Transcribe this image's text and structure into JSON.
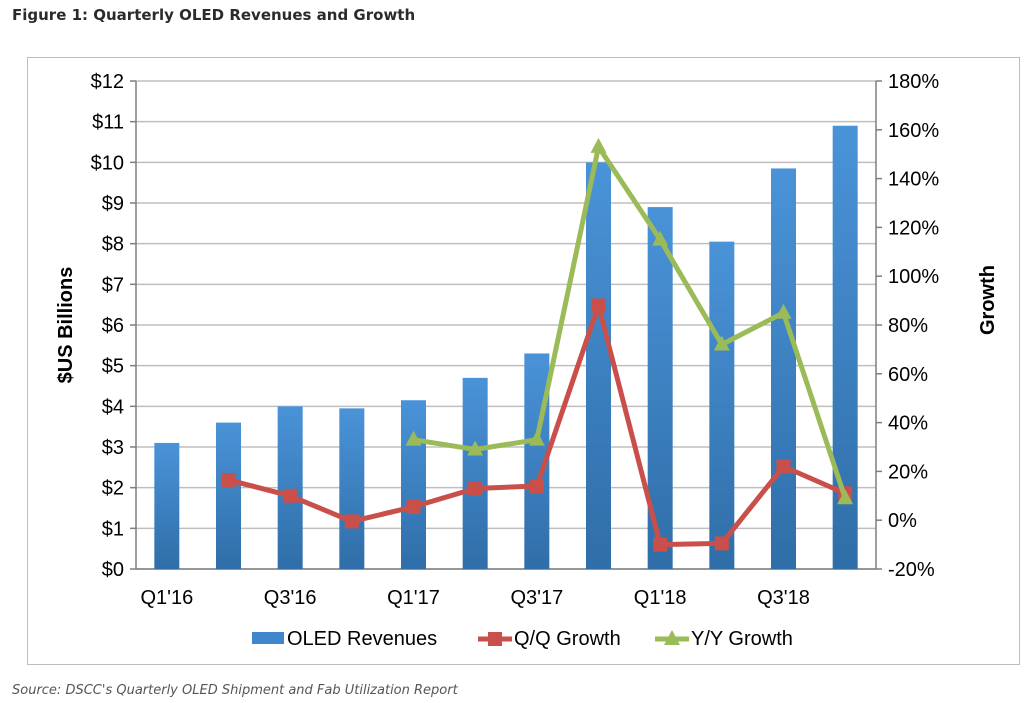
{
  "figure_title": "Figure 1: Quarterly OLED Revenues and Growth",
  "source_note": "Source: DSCC's Quarterly OLED Shipment and Fab Utilization Report",
  "colors": {
    "bar": "#3f86cc",
    "qq": "#c9504a",
    "yy": "#9bbb59",
    "grid": "#bfbfbf"
  },
  "chart_data": {
    "type": "bar",
    "categories": [
      "Q1'16",
      "Q2'16",
      "Q3'16",
      "Q4'16",
      "Q1'17",
      "Q2'17",
      "Q3'17",
      "Q4'17",
      "Q1'18",
      "Q2'18",
      "Q3'18",
      "Q4'18"
    ],
    "x_tick_labels": [
      "Q1'16",
      "",
      "Q3'16",
      "",
      "Q1'17",
      "",
      "Q3'17",
      "",
      "Q1'18",
      "",
      "Q3'18",
      ""
    ],
    "y_left": {
      "label": "$US Billions",
      "min": 0,
      "max": 12,
      "ticks": [
        "$0",
        "$1",
        "$2",
        "$3",
        "$4",
        "$5",
        "$6",
        "$7",
        "$8",
        "$9",
        "$10",
        "$11",
        "$12"
      ]
    },
    "y_right": {
      "label": "Growth",
      "min": -20,
      "max": 180,
      "ticks": [
        "-20%",
        "0%",
        "20%",
        "40%",
        "60%",
        "80%",
        "100%",
        "120%",
        "140%",
        "160%",
        "180%"
      ]
    },
    "grid": true,
    "legend_position": "bottom",
    "series": [
      {
        "name": "OLED Revenues",
        "kind": "bar",
        "axis": "left",
        "values": [
          3.1,
          3.6,
          4.0,
          3.95,
          4.15,
          4.7,
          5.3,
          10.0,
          8.9,
          8.05,
          9.85,
          10.9
        ]
      },
      {
        "name": "Q/Q Growth",
        "kind": "line",
        "axis": "right",
        "marker": "square",
        "values": [
          null,
          16.5,
          10,
          -0.5,
          5.5,
          13,
          14,
          88,
          -10,
          -9.5,
          22,
          11
        ]
      },
      {
        "name": "Y/Y Growth",
        "kind": "line",
        "axis": "right",
        "marker": "triangle",
        "values": [
          null,
          null,
          null,
          null,
          33,
          29,
          33,
          153,
          115,
          72,
          85,
          9
        ]
      }
    ]
  }
}
